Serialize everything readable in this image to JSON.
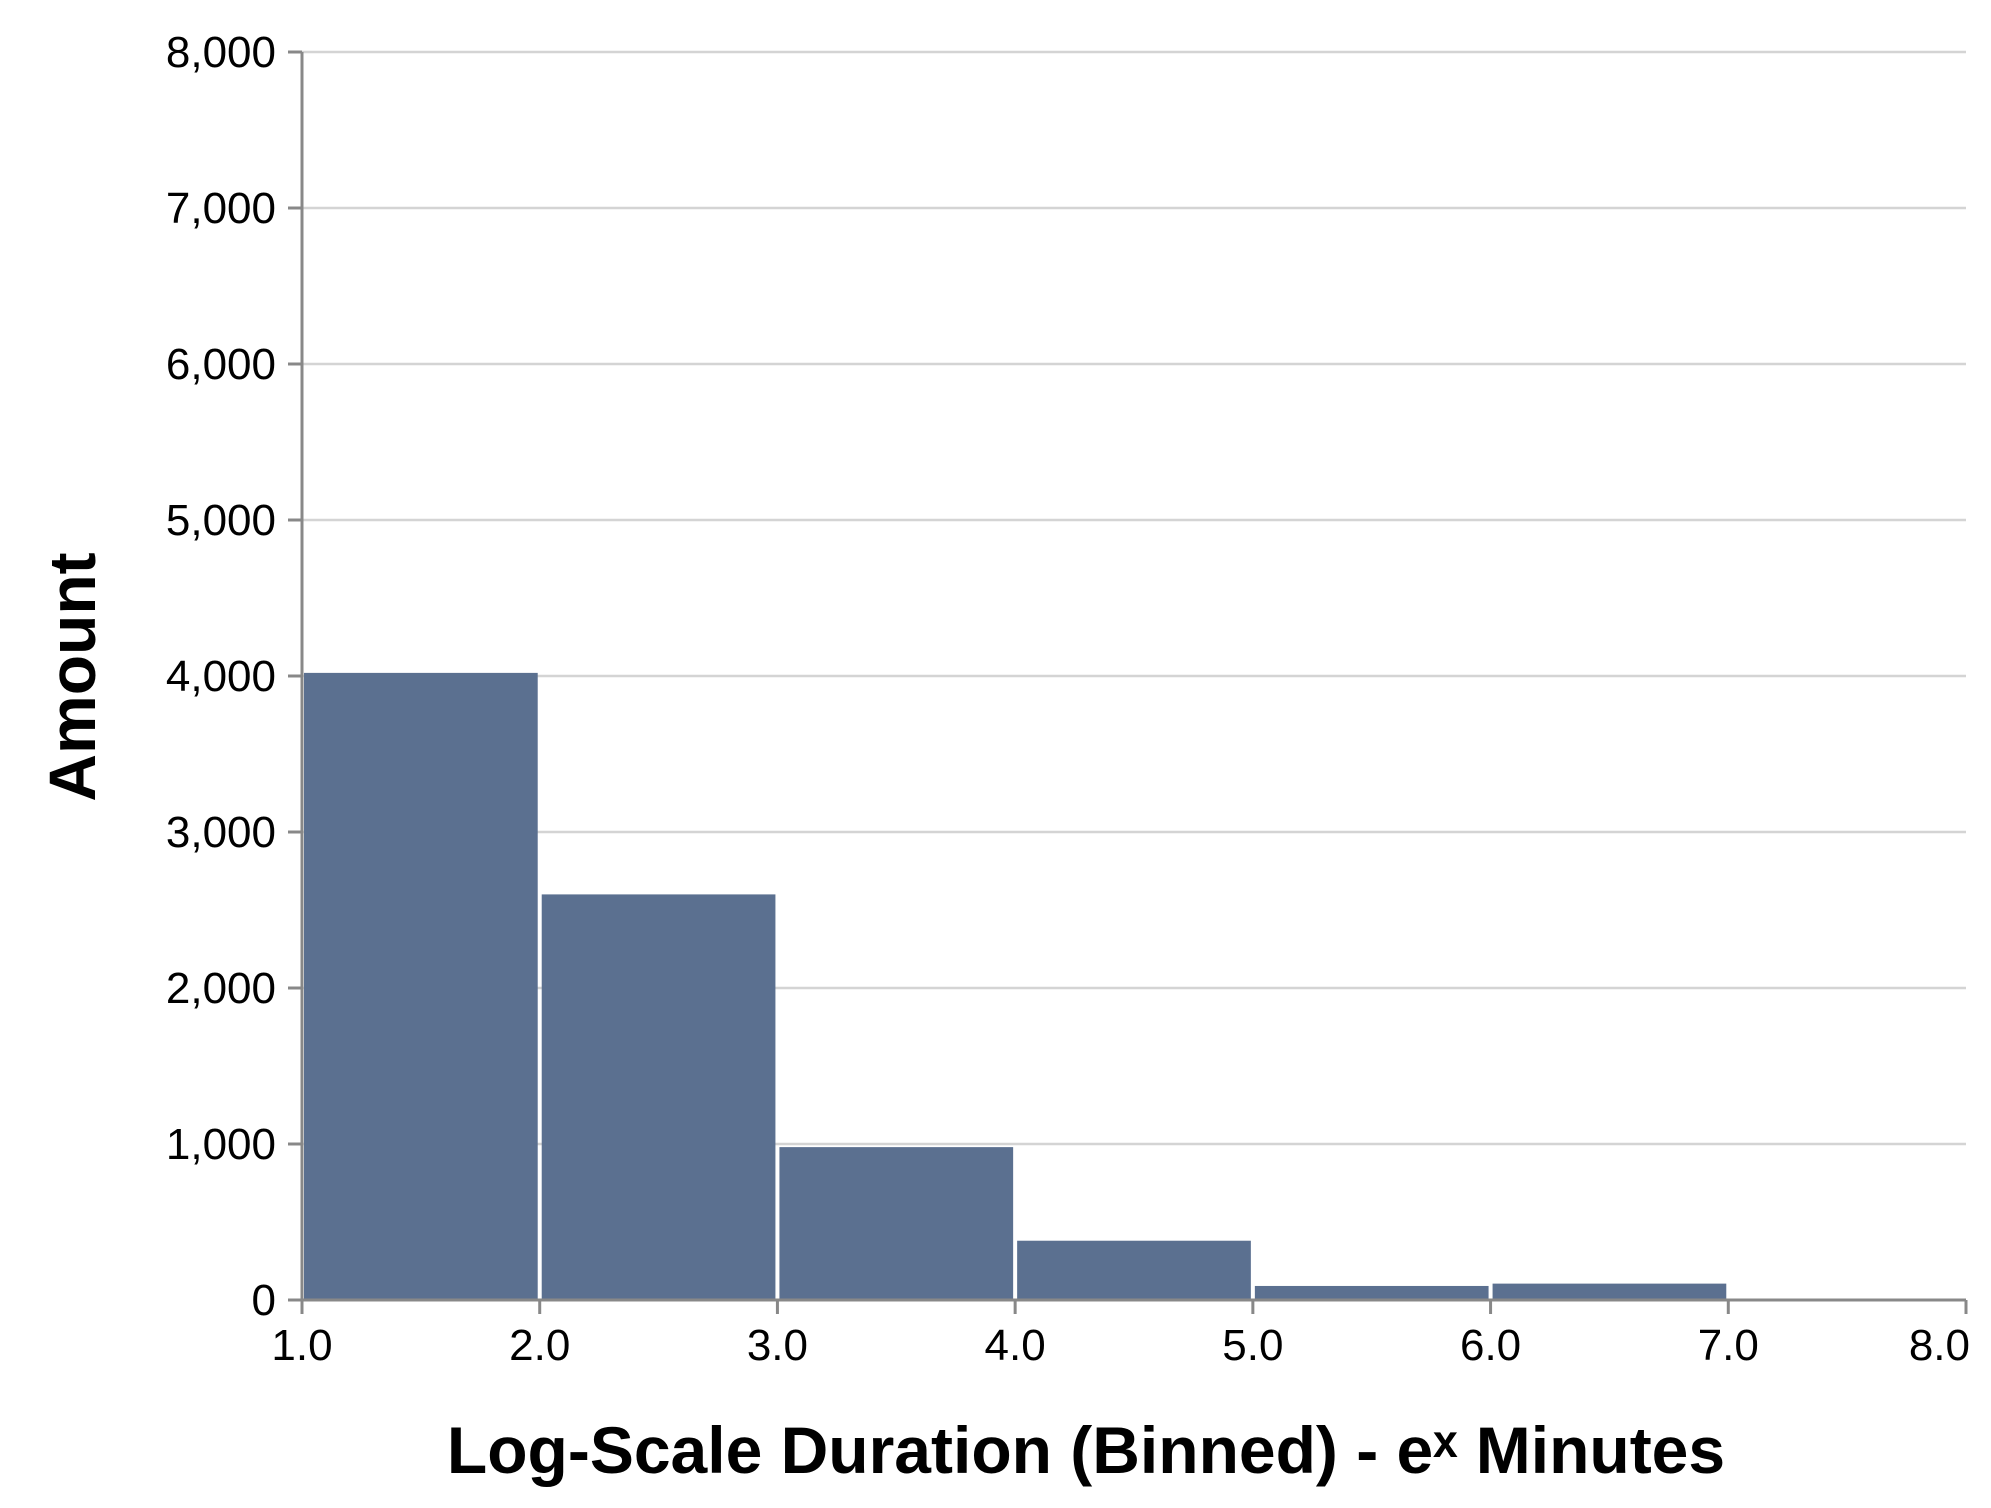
{
  "chart_data": {
    "type": "bar",
    "title": "",
    "xlabel": "Log-Scale Duration (Binned) - eˣ Minutes",
    "ylabel": "Amount",
    "bins": [
      {
        "start": 1.0,
        "end": 2.0,
        "value": 4020
      },
      {
        "start": 2.0,
        "end": 3.0,
        "value": 2600
      },
      {
        "start": 3.0,
        "end": 4.0,
        "value": 980
      },
      {
        "start": 4.0,
        "end": 5.0,
        "value": 380
      },
      {
        "start": 5.0,
        "end": 6.0,
        "value": 90
      },
      {
        "start": 6.0,
        "end": 7.0,
        "value": 105
      },
      {
        "start": 7.0,
        "end": 8.0,
        "value": 5
      }
    ],
    "xlim": [
      1.0,
      8.0
    ],
    "ylim": [
      0,
      8000
    ],
    "x_ticks": [
      "1.0",
      "2.0",
      "3.0",
      "4.0",
      "5.0",
      "6.0",
      "7.0",
      "8.0"
    ],
    "y_ticks": [
      "0",
      "1,000",
      "2,000",
      "3,000",
      "4,000",
      "5,000",
      "6,000",
      "7,000",
      "8,000"
    ],
    "y_tick_values": [
      0,
      1000,
      2000,
      3000,
      4000,
      5000,
      6000,
      7000,
      8000
    ],
    "x_tick_values": [
      1,
      2,
      3,
      4,
      5,
      6,
      7,
      8
    ],
    "grid": "horizontal",
    "colors": {
      "bar": "#5b7090",
      "grid": "#d4d4d4",
      "axis": "#888888"
    }
  }
}
